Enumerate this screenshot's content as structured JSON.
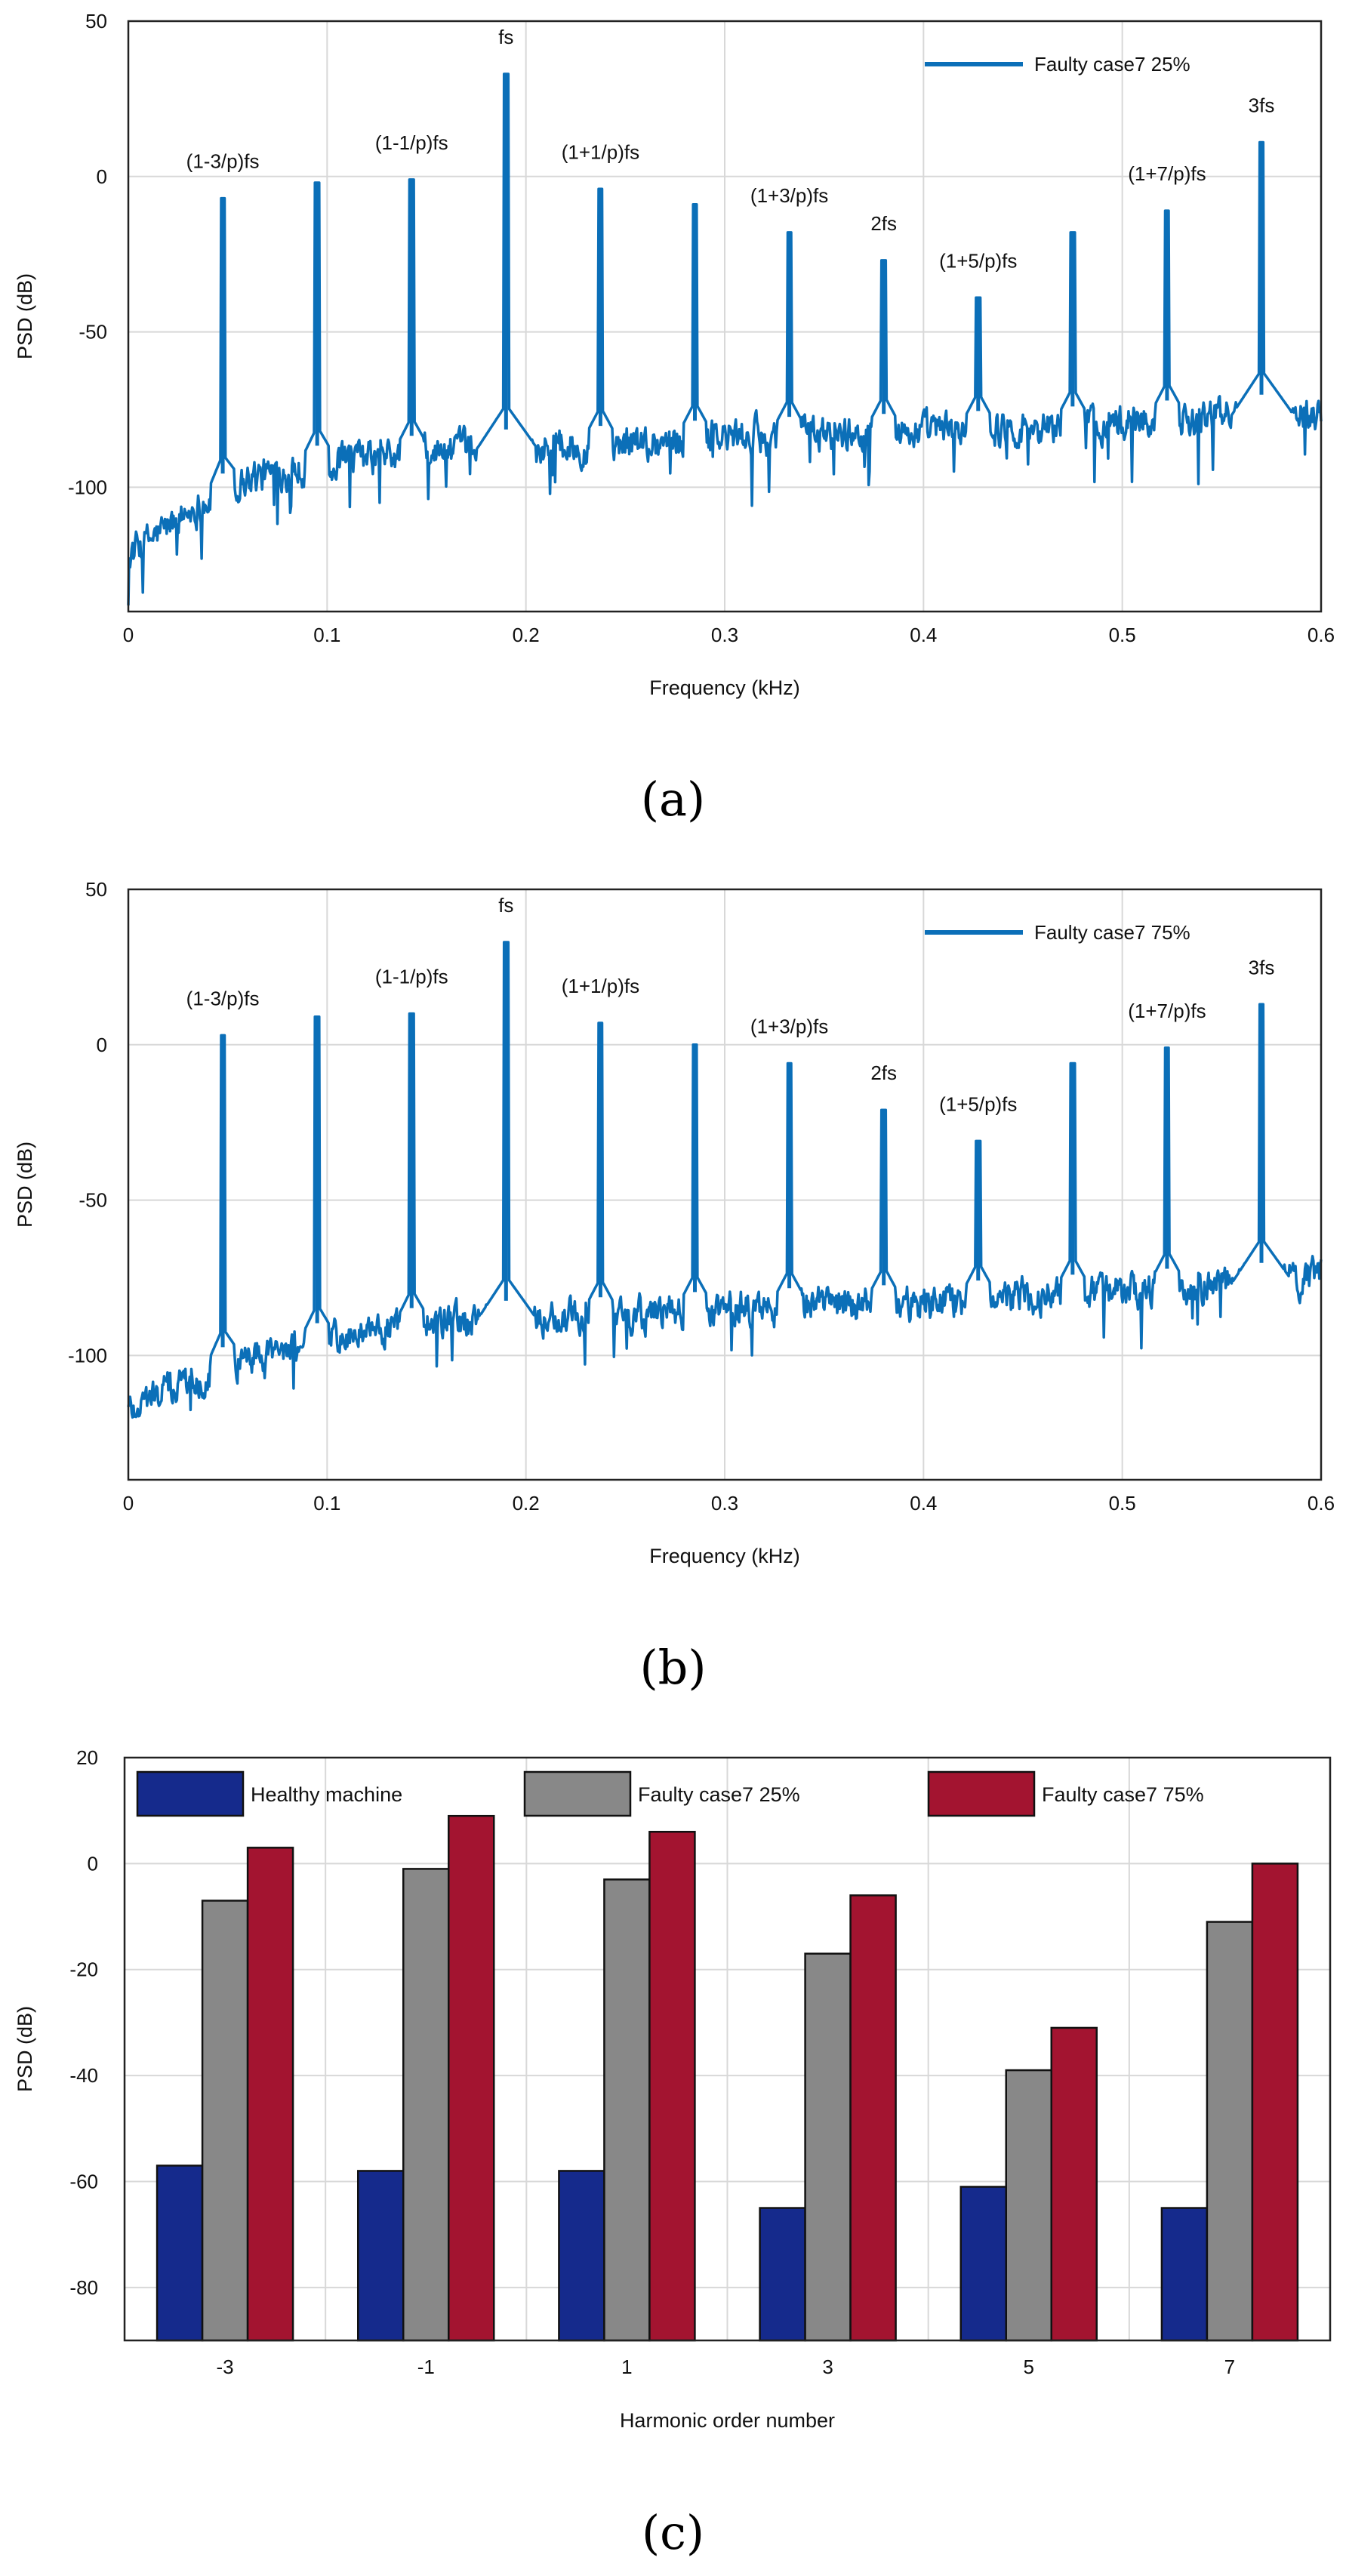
{
  "chart_data": [
    {
      "panel": "(a)",
      "type": "line",
      "title": "",
      "xlabel": "Frequency (kHz)",
      "ylabel": "PSD (dB)",
      "xlim": [
        0,
        0.6
      ],
      "ylim": [
        -140,
        50
      ],
      "xticks": [
        0,
        0.1,
        0.2,
        0.3,
        0.4,
        0.5,
        0.6
      ],
      "xtick_labels": [
        "0",
        "0.1",
        "0.2",
        "0.3",
        "0.4",
        "0.5",
        "0.6"
      ],
      "yticks": [
        50,
        0,
        -50,
        -100
      ],
      "ytick_labels": [
        "50",
        "0",
        "-50",
        "-100"
      ],
      "grid": true,
      "legend": {
        "position": "top-right",
        "entries": [
          "Faulty case7 25%"
        ]
      },
      "series_color": "#0b6fb8",
      "baseline": [
        [
          0,
          -122
        ],
        [
          0.03,
          -108
        ],
        [
          0.06,
          -97
        ],
        [
          0.1,
          -92
        ],
        [
          0.15,
          -89
        ],
        [
          0.2,
          -87
        ],
        [
          0.25,
          -86
        ],
        [
          0.3,
          -84
        ],
        [
          0.35,
          -83
        ],
        [
          0.4,
          -82
        ],
        [
          0.45,
          -81
        ],
        [
          0.5,
          -79
        ],
        [
          0.55,
          -77
        ],
        [
          0.6,
          -75
        ]
      ],
      "peaks": [
        {
          "x": 0.0475,
          "y": -7,
          "label": "(1-3/p)fs"
        },
        {
          "x": 0.095,
          "y": -2,
          "label": ""
        },
        {
          "x": 0.1425,
          "y": -1,
          "label": "(1-1/p)fs"
        },
        {
          "x": 0.19,
          "y": 33,
          "label": "fs"
        },
        {
          "x": 0.2375,
          "y": -4,
          "label": "(1+1/p)fs"
        },
        {
          "x": 0.285,
          "y": -9,
          "label": ""
        },
        {
          "x": 0.3325,
          "y": -18,
          "label": "(1+3/p)fs"
        },
        {
          "x": 0.38,
          "y": -27,
          "label": "2fs"
        },
        {
          "x": 0.4275,
          "y": -39,
          "label": "(1+5/p)fs"
        },
        {
          "x": 0.475,
          "y": -18,
          "label": ""
        },
        {
          "x": 0.5225,
          "y": -11,
          "label": "(1+7/p)fs"
        },
        {
          "x": 0.57,
          "y": 11,
          "label": "3fs"
        }
      ]
    },
    {
      "panel": "(b)",
      "type": "line",
      "title": "",
      "xlabel": "Frequency (kHz)",
      "ylabel": "PSD (dB)",
      "xlim": [
        0,
        0.6
      ],
      "ylim": [
        -140,
        50
      ],
      "xticks": [
        0,
        0.1,
        0.2,
        0.3,
        0.4,
        0.5,
        0.6
      ],
      "xtick_labels": [
        "0",
        "0.1",
        "0.2",
        "0.3",
        "0.4",
        "0.5",
        "0.6"
      ],
      "yticks": [
        50,
        0,
        -50,
        -100
      ],
      "ytick_labels": [
        "50",
        "0",
        "-50",
        "-100"
      ],
      "grid": true,
      "legend": {
        "position": "top-right",
        "entries": [
          "Faulty case7 75%"
        ]
      },
      "series_color": "#0b6fb8",
      "baseline": [
        [
          0,
          -117
        ],
        [
          0.03,
          -108
        ],
        [
          0.06,
          -100
        ],
        [
          0.1,
          -95
        ],
        [
          0.15,
          -90
        ],
        [
          0.2,
          -88
        ],
        [
          0.25,
          -87
        ],
        [
          0.3,
          -85
        ],
        [
          0.35,
          -84
        ],
        [
          0.4,
          -83
        ],
        [
          0.45,
          -81
        ],
        [
          0.5,
          -79
        ],
        [
          0.55,
          -77
        ],
        [
          0.6,
          -75
        ]
      ],
      "peaks": [
        {
          "x": 0.0475,
          "y": 3,
          "label": "(1-3/p)fs"
        },
        {
          "x": 0.095,
          "y": 9,
          "label": ""
        },
        {
          "x": 0.1425,
          "y": 10,
          "label": "(1-1/p)fs"
        },
        {
          "x": 0.19,
          "y": 33,
          "label": "fs"
        },
        {
          "x": 0.2375,
          "y": 7,
          "label": "(1+1/p)fs"
        },
        {
          "x": 0.285,
          "y": 0,
          "label": ""
        },
        {
          "x": 0.3325,
          "y": -6,
          "label": "(1+3/p)fs"
        },
        {
          "x": 0.38,
          "y": -21,
          "label": "2fs"
        },
        {
          "x": 0.4275,
          "y": -31,
          "label": "(1+5/p)fs"
        },
        {
          "x": 0.475,
          "y": -6,
          "label": ""
        },
        {
          "x": 0.5225,
          "y": -1,
          "label": "(1+7/p)fs"
        },
        {
          "x": 0.57,
          "y": 13,
          "label": "3fs"
        }
      ]
    },
    {
      "panel": "(c)",
      "type": "bar",
      "title": "",
      "xlabel": "Harmonic order number",
      "ylabel": "PSD (dB)",
      "categories": [
        "-3",
        "-1",
        "1",
        "3",
        "5",
        "7"
      ],
      "ylim": [
        -90,
        20
      ],
      "yticks": [
        20,
        0,
        -20,
        -40,
        -60,
        -80
      ],
      "ytick_labels": [
        "20",
        "0",
        "-20",
        "-40",
        "-60",
        "-80"
      ],
      "grid": true,
      "legend": {
        "position": "top",
        "entries": [
          "Healthy machine",
          "Faulty case7 25%",
          "Faulty case7 75%"
        ]
      },
      "series": [
        {
          "name": "Healthy machine",
          "color": "#152a8c",
          "values": [
            -57,
            -58,
            -58,
            -65,
            -61,
            -65
          ]
        },
        {
          "name": "Faulty case7 25%",
          "color": "#888888",
          "values": [
            -7,
            -1,
            -3,
            -17,
            -39,
            -11
          ]
        },
        {
          "name": "Faulty case7 75%",
          "color": "#a31430",
          "values": [
            3,
            9,
            6,
            -6,
            -31,
            0
          ]
        }
      ]
    }
  ],
  "captions": [
    "(a)",
    "(b)",
    "(c)"
  ]
}
